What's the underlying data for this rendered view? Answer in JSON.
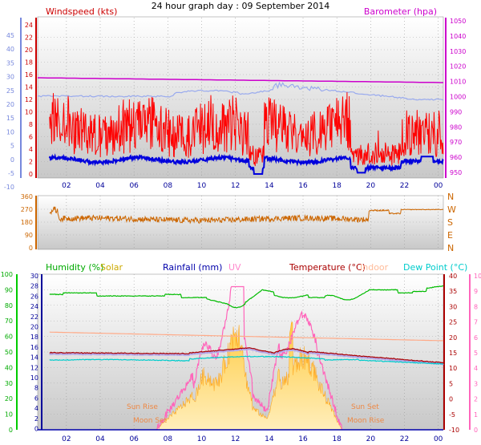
{
  "title": "24 hour graph day : 09 September 2014",
  "colors": {
    "wind_gust": "#ff0000",
    "wind_avg": "#0000dd",
    "wind_dir": "#cc6600",
    "barometer": "#cc00cc",
    "barometer_trace": "#99aaee",
    "humidity": "#00bb00",
    "solar": "#ffbb33",
    "uv": "#ff66bb",
    "temperature": "#aa0000",
    "indoor": "#ffaa88",
    "dewpoint": "#00cccc",
    "rainfall": "#0000aa"
  },
  "x_ticks": [
    "02",
    "04",
    "06",
    "08",
    "10",
    "12",
    "14",
    "16",
    "18",
    "20",
    "22",
    "00"
  ],
  "panel1": {
    "title_left": "Windspeed (kts)",
    "title_right": "Barometer (hpa)",
    "left_ticks": [
      "24",
      "22",
      "20",
      "18",
      "16",
      "14",
      "12",
      "10",
      "8",
      "6",
      "4",
      "2",
      "0"
    ],
    "outer_left_ticks": [
      "45",
      "40",
      "35",
      "30",
      "25",
      "20",
      "15",
      "10",
      "5",
      "0",
      "-5",
      "-10"
    ],
    "right_ticks": [
      "1050",
      "1040",
      "1030",
      "1020",
      "1010",
      "1000",
      "990",
      "980",
      "970",
      "960",
      "950"
    ]
  },
  "panel2": {
    "left_ticks": [
      "360",
      "270",
      "180",
      "90",
      "0"
    ],
    "right_ticks": [
      "N",
      "W",
      "S",
      "E",
      "N"
    ]
  },
  "panel3": {
    "labels": {
      "humidity": "Humidity (%)",
      "solar": "Solar",
      "rainfall": "Rainfall (mm)",
      "uv": "UV",
      "temperature": "Temperature (°C)",
      "indoor": "Indoor",
      "dewpoint": "Dew Point (°C)"
    },
    "humidity_ticks": [
      "100",
      "90",
      "80",
      "70",
      "60",
      "50",
      "40",
      "30",
      "20",
      "10",
      "0"
    ],
    "rain_ticks": [
      "30",
      "28",
      "26",
      "24",
      "22",
      "20",
      "18",
      "16",
      "14",
      "12",
      "10",
      "8",
      "6",
      "4",
      "2",
      "0"
    ],
    "temp_ticks": [
      "40",
      "35",
      "30",
      "25",
      "20",
      "15",
      "10",
      "5",
      "0",
      "-5",
      "-10"
    ],
    "uv_ticks": [
      "10",
      "9",
      "8",
      "7",
      "6",
      "5",
      "4",
      "3",
      "2",
      "1",
      "0"
    ],
    "annotations": {
      "sun_rise": "Sun Rise",
      "moon_set": "Moon Set",
      "sun_set": "Sun Set",
      "moon_rise": "Moon Rise"
    }
  },
  "chart_data": [
    {
      "type": "line",
      "title": "24 hour graph day : 09 September 2014",
      "x": [
        "00:30",
        "02",
        "04",
        "06",
        "08",
        "10",
        "12",
        "13",
        "14",
        "16",
        "18",
        "19",
        "20",
        "22",
        "00"
      ],
      "series": [
        {
          "name": "Windspeed (kts)",
          "values": [
            5,
            5,
            4,
            5,
            4,
            5,
            4,
            0,
            4,
            5,
            2,
            1,
            2,
            3,
            3
          ]
        },
        {
          "name": "Barometer (hpa)",
          "values": [
            1009,
            1009,
            1009,
            1009,
            1009,
            1009,
            1009,
            1008,
            1008,
            1008,
            1008,
            1008,
            1008,
            1007,
            1007
          ]
        }
      ],
      "ylim_left": [
        0,
        25
      ],
      "ylim_right": [
        950,
        1050
      ]
    },
    {
      "type": "line",
      "x": [
        "00:30",
        "02",
        "04",
        "06",
        "08",
        "10",
        "12",
        "14",
        "16",
        "18",
        "19",
        "19:30",
        "20",
        "22",
        "00"
      ],
      "series": [
        {
          "name": "Wind Direction",
          "values": [
            230,
            220,
            215,
            210,
            205,
            210,
            205,
            200,
            205,
            210,
            215,
            260,
            240,
            265,
            270
          ]
        }
      ],
      "ylim": [
        0,
        360
      ]
    },
    {
      "type": "line",
      "x": [
        "00:30",
        "02",
        "04",
        "06",
        "08",
        "10",
        "12",
        "13",
        "14",
        "16",
        "18",
        "20",
        "22",
        "00"
      ],
      "series": [
        {
          "name": "Humidity (%)",
          "values": [
            87,
            87,
            86,
            86,
            86,
            84,
            80,
            88,
            86,
            84,
            86,
            90,
            90,
            92
          ]
        },
        {
          "name": "Temperature (°C)",
          "values": [
            15,
            15,
            15,
            14,
            14,
            15,
            16,
            15,
            15,
            16,
            14,
            13,
            13,
            12
          ]
        },
        {
          "name": "Indoor",
          "values": [
            22,
            22,
            21,
            21,
            21,
            20,
            20,
            20,
            20,
            20,
            20,
            20,
            20,
            20
          ]
        },
        {
          "name": "Dew Point (°C)",
          "values": [
            13,
            13,
            13,
            13,
            12,
            12,
            13,
            13,
            13,
            13,
            13,
            12,
            12,
            11
          ]
        },
        {
          "name": "Solar",
          "values": [
            0,
            0,
            0,
            0,
            0,
            200,
            500,
            100,
            300,
            200,
            50,
            0,
            0,
            0
          ]
        }
      ],
      "ylim_humidity": [
        0,
        100
      ],
      "ylim_temperature": [
        -10,
        40
      ]
    }
  ]
}
